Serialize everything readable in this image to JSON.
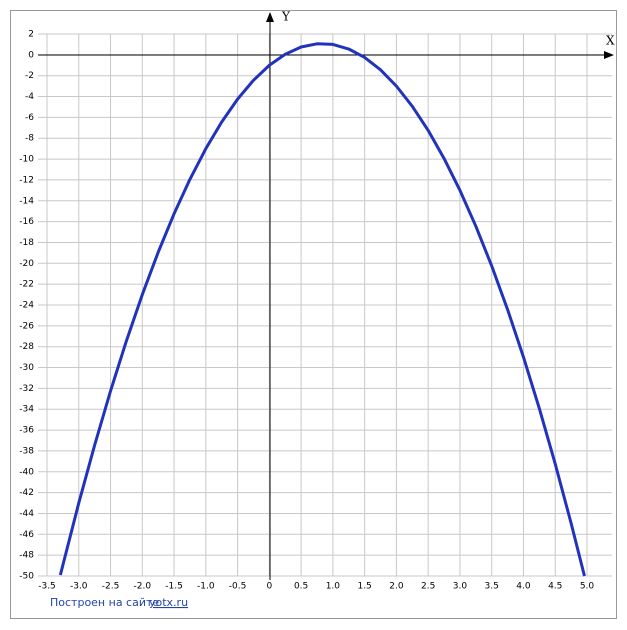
{
  "chart_data": {
    "type": "line",
    "x_axis_label": "X",
    "y_axis_label": "Y",
    "footer": "Построен на сайте",
    "footer_link": "yotx.ru",
    "x": [
      -3.29,
      -3,
      -2.75,
      -2.5,
      -2.25,
      -2,
      -1.75,
      -1.5,
      -1.25,
      -1,
      -0.75,
      -0.5,
      -0.25,
      0,
      0.25,
      0.5,
      0.75,
      1,
      1.25,
      1.5,
      1.75,
      2,
      2.25,
      2.5,
      2.75,
      3,
      3.25,
      3.5,
      3.75,
      4,
      4.25,
      4.5,
      4.75,
      4.96
    ],
    "series": [
      {
        "color": "#2233bb",
        "values": [
          -49.9,
          -43,
          -37.44,
          -32.25,
          -27.44,
          -23,
          -18.94,
          -15.25,
          -11.94,
          -9,
          -6.44,
          -4.25,
          -2.44,
          -1,
          0.06,
          0.75,
          1.06,
          1,
          0.56,
          -0.25,
          -1.44,
          -3,
          -4.94,
          -7.25,
          -9.94,
          -13,
          -16.44,
          -20.25,
          -24.44,
          -29,
          -33.94,
          -39.25,
          -44.94,
          -50
        ]
      }
    ],
    "xlim": [
      -3.5,
      5
    ],
    "xticks": [
      -3.5,
      {
        "value": -3,
        "label": "-3.0"
      },
      -2.5,
      {
        "value": -2,
        "label": "-2.0"
      },
      -1.5,
      {
        "value": -1,
        "label": "-1.0"
      },
      -0.5,
      0,
      0.5,
      {
        "value": 1,
        "label": "1.0"
      },
      1.5,
      {
        "value": 2,
        "label": "2.0"
      },
      2.5,
      {
        "value": 3,
        "label": "3.0"
      },
      3.5,
      {
        "value": 4,
        "label": "4.0"
      },
      4.5,
      {
        "value": 5,
        "label": "5.0"
      }
    ],
    "ylim": [
      -50,
      2
    ],
    "yticks": [
      -50,
      -48,
      -46,
      -44,
      -42,
      -40,
      -38,
      -36,
      -34,
      -32,
      -30,
      -28,
      -26,
      -24,
      -22,
      -20,
      -18,
      -16,
      -14,
      -12,
      -10,
      -8,
      -6,
      -4,
      -2,
      0,
      2
    ],
    "grid": true
  }
}
